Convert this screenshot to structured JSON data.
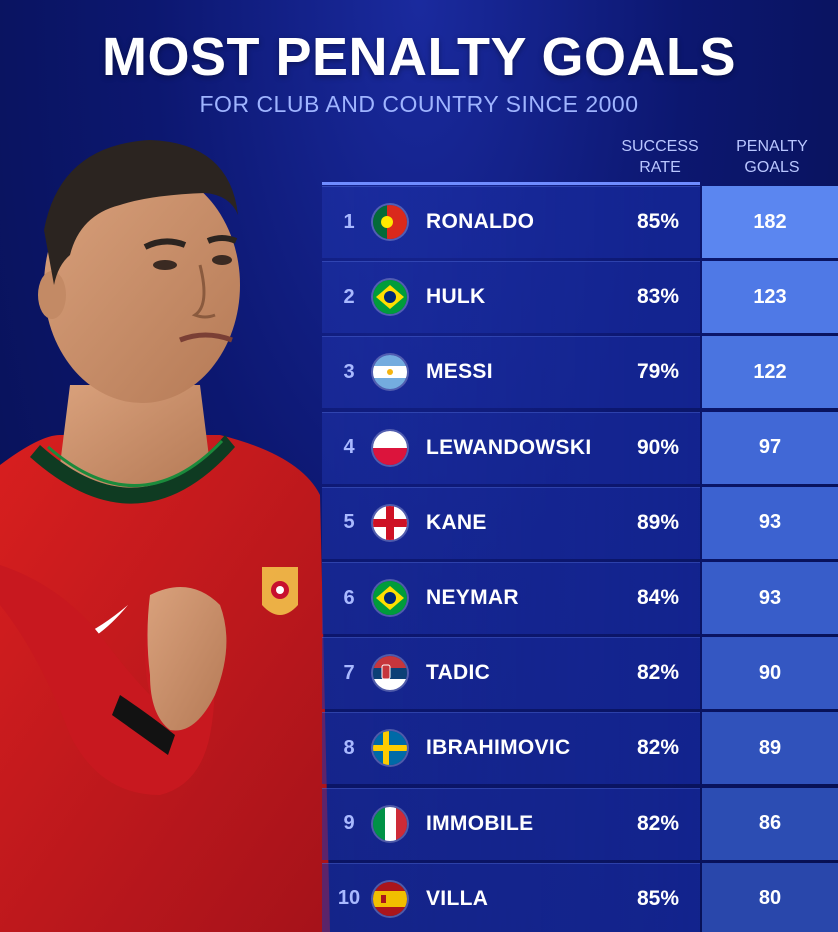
{
  "header": {
    "title": "MOST PENALTY GOALS",
    "subtitle": "FOR CLUB AND COUNTRY SINCE 2000"
  },
  "columns": {
    "rate_line1": "SUCCESS",
    "rate_line2": "RATE",
    "goals_line1": "PENALTY",
    "goals_line2": "GOALS"
  },
  "rows": [
    {
      "rank": "1",
      "flag": "portugal-flag-icon",
      "name": "RONALDO",
      "rate": "85%",
      "goals": "182",
      "goal_color": "#5b86f0"
    },
    {
      "rank": "2",
      "flag": "brazil-flag-icon",
      "name": "HULK",
      "rate": "83%",
      "goals": "123",
      "goal_color": "#4f79e6"
    },
    {
      "rank": "3",
      "flag": "argentina-flag-icon",
      "name": "MESSI",
      "rate": "79%",
      "goals": "122",
      "goal_color": "#4a74e0"
    },
    {
      "rank": "4",
      "flag": "poland-flag-icon",
      "name": "LEWANDOWSKI",
      "rate": "90%",
      "goals": "97",
      "goal_color": "#4168d6"
    },
    {
      "rank": "5",
      "flag": "england-flag-icon",
      "name": "KANE",
      "rate": "89%",
      "goals": "93",
      "goal_color": "#3c62d0"
    },
    {
      "rank": "6",
      "flag": "brazil-flag-icon",
      "name": "NEYMAR",
      "rate": "84%",
      "goals": "93",
      "goal_color": "#385dc9"
    },
    {
      "rank": "7",
      "flag": "serbia-flag-icon",
      "name": "TADIC",
      "rate": "82%",
      "goals": "90",
      "goal_color": "#3457c2"
    },
    {
      "rank": "8",
      "flag": "sweden-flag-icon",
      "name": "IBRAHIMOVIC",
      "rate": "82%",
      "goals": "89",
      "goal_color": "#3052bb"
    },
    {
      "rank": "9",
      "flag": "italy-flag-icon",
      "name": "IMMOBILE",
      "rate": "82%",
      "goals": "86",
      "goal_color": "#2c4db3"
    },
    {
      "rank": "10",
      "flag": "spain-flag-icon",
      "name": "VILLA",
      "rate": "85%",
      "goals": "80",
      "goal_color": "#2947ab"
    }
  ],
  "player": {
    "crest_icon": "portugal-crest-icon",
    "logo_icon": "swoosh-logo-icon"
  }
}
